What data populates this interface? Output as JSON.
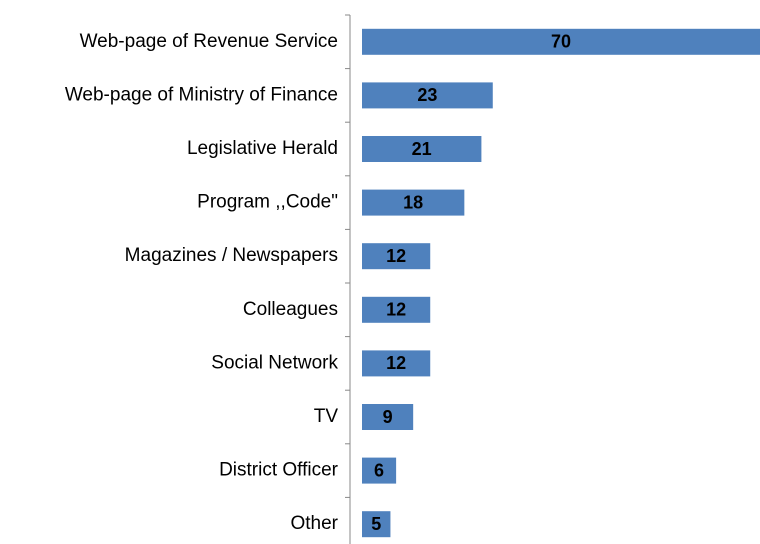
{
  "chart_data": {
    "type": "bar",
    "orientation": "horizontal",
    "categories": [
      "Web-page of Revenue Service",
      "Web-page of Ministry of Finance",
      "Legislative Herald",
      "Program ,,Code\"",
      "Magazines / Newspapers",
      "Colleagues",
      "Social Network",
      "TV",
      "District Officer",
      "Other"
    ],
    "values": [
      70,
      23,
      21,
      18,
      12,
      12,
      12,
      9,
      6,
      5
    ],
    "color": "#4f81bd",
    "xlim": [
      0,
      70
    ]
  }
}
